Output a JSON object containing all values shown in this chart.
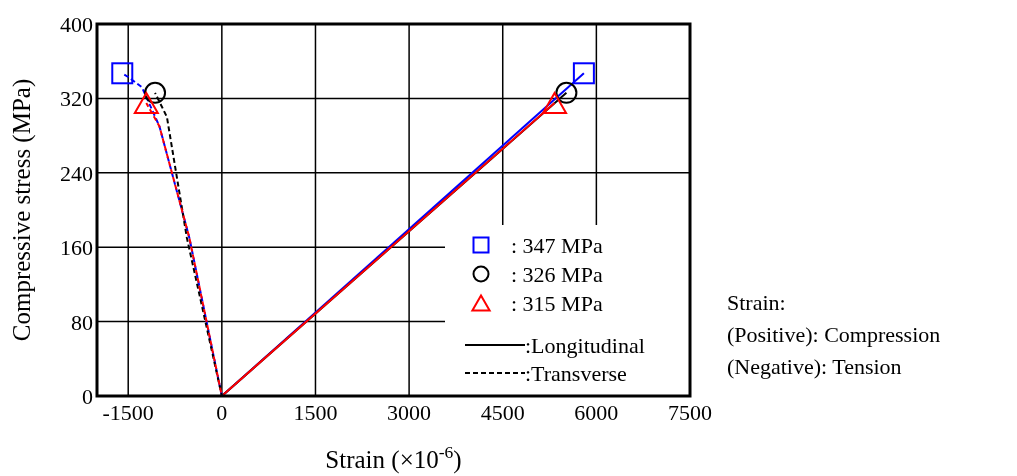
{
  "chart_data": {
    "type": "line",
    "xlabel": "Strain (×10$^{-6}$)",
    "ylabel": "Compressive stress (MPa)",
    "xlim": [
      -2000,
      7500
    ],
    "ylim": [
      0,
      400
    ],
    "xticks": [
      -1500,
      0,
      1500,
      3000,
      4500,
      6000,
      7500
    ],
    "yticks": [
      0,
      80,
      160,
      240,
      320,
      400
    ],
    "grid": true,
    "legend": "bottom right",
    "annotations": [
      "Strain:",
      "(Positive): Compression",
      "(Negative): Tension"
    ],
    "series": [
      {
        "color": "#0000ff",
        "line_style": "solid",
        "x": [
          0,
          5800
        ],
        "values": [
          0,
          347
        ]
      },
      {
        "name": ":Longitudinal",
        "color": "#000000",
        "line_style": "solid",
        "x": [
          0,
          5520
        ],
        "values": [
          0,
          326
        ]
      },
      {
        "color": "#ff0000",
        "line_style": "solid",
        "x": [
          0,
          5330
        ],
        "values": [
          0,
          315
        ]
      },
      {
        "color": "#0000ff",
        "line_style": "dashed",
        "x": [
          0,
          -520,
          -1000,
          -1280,
          -1500,
          -1595
        ],
        "values": [
          0,
          170,
          290,
          332,
          343,
          347
        ]
      },
      {
        "name": ":Transverse",
        "color": "#000000",
        "line_style": "dashed",
        "x": [
          0,
          -560,
          -880,
          -1070
        ],
        "values": [
          0,
          170,
          300,
          326
        ]
      },
      {
        "color": "#ff0000",
        "line_style": "dashed",
        "x": [
          0,
          -520,
          -1000,
          -1210
        ],
        "values": [
          0,
          170,
          290,
          315
        ]
      },
      {
        "type": "scatter",
        "name": ": 347 MPa",
        "color": "#0000ff",
        "marker": "square",
        "x": [
          -1595,
          5800
        ],
        "values": [
          347,
          347
        ]
      },
      {
        "type": "scatter",
        "name": ": 326 MPa",
        "color": "#000000",
        "marker": "circle",
        "x": [
          -1070,
          5520
        ],
        "values": [
          326,
          326
        ]
      },
      {
        "type": "scatter",
        "name": ": 315 MPa",
        "color": "#ff0000",
        "marker": "triangle",
        "x": [
          -1210,
          5330
        ],
        "values": [
          315,
          315
        ]
      }
    ]
  }
}
